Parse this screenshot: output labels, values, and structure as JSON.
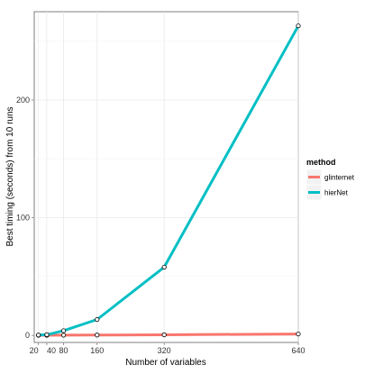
{
  "chart_data": {
    "type": "line",
    "xlabel": "Number of variables",
    "ylabel": "Best timing (seconds) from 10 runs",
    "x": [
      20,
      40,
      80,
      160,
      320,
      640
    ],
    "x_tick_labels": [
      "20",
      "40",
      "80",
      "160",
      "320",
      "640"
    ],
    "y_ticks": [
      0,
      100,
      200
    ],
    "xlim": [
      10,
      640
    ],
    "ylim": [
      -6,
      275
    ],
    "grid": true,
    "legend_position": "right",
    "legend_title": "method",
    "series": [
      {
        "name": "glinternet",
        "color": "#F8766D",
        "values": [
          0.1,
          0.1,
          0.2,
          0.3,
          0.5,
          1.2
        ]
      },
      {
        "name": "hierNet",
        "color": "#00BFC4",
        "values": [
          0.3,
          0.6,
          4,
          13.5,
          58,
          263
        ]
      }
    ]
  }
}
